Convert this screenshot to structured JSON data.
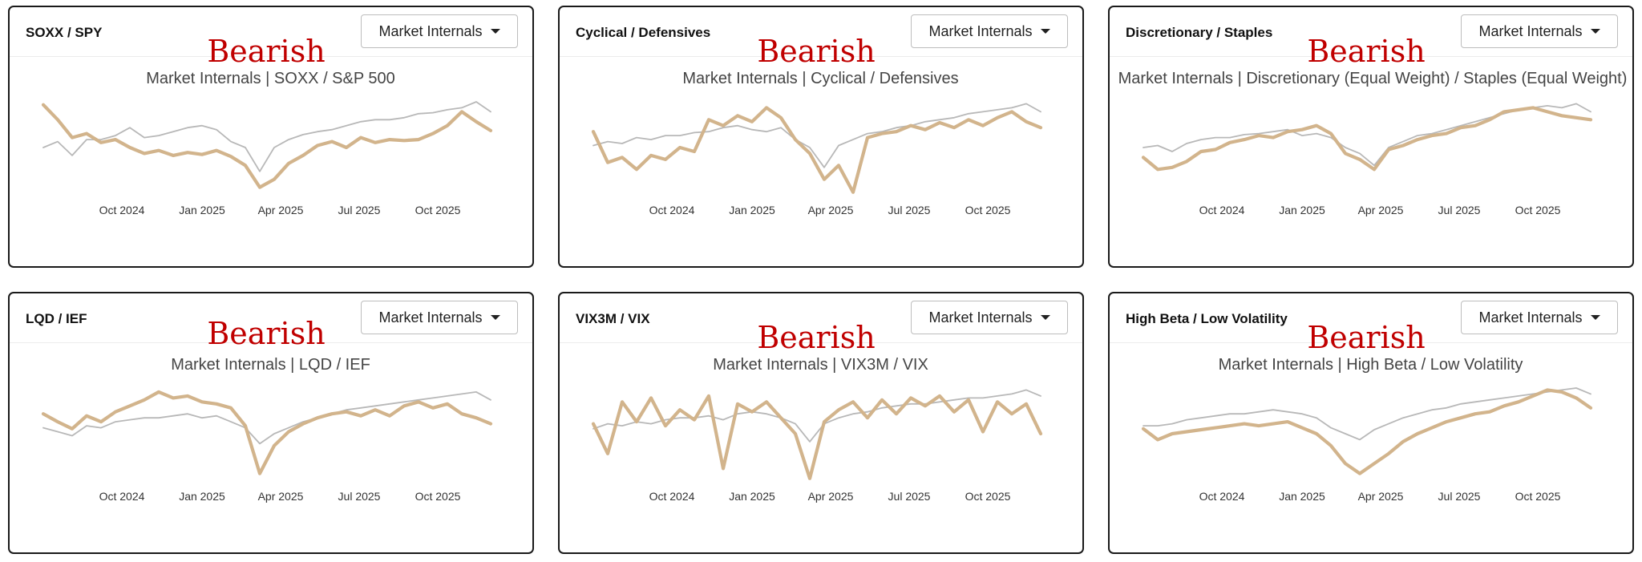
{
  "dropdown_label": "Market Internals",
  "colors": {
    "ratio": "#d2b48c",
    "benchmark": "#b8b8b8",
    "verdict": "#c00000"
  },
  "x_ticks": [
    "Oct 2024",
    "Jan 2025",
    "Apr 2025",
    "Jul 2025",
    "Oct 2025"
  ],
  "cards": [
    {
      "title": "SOXX / SPY",
      "verdict": "Bearish",
      "subtitle": "Market Internals | SOXX / S&P 500",
      "dropdown": "Market Internals",
      "chart_data": {
        "type": "line",
        "x_ticks": [
          "Oct 2024",
          "Jan 2025",
          "Apr 2025",
          "Jul 2025",
          "Oct 2025"
        ],
        "series": [
          {
            "values": [
              0.93,
              0.78,
              0.6,
              0.64,
              0.55,
              0.58,
              0.5,
              0.44,
              0.47,
              0.42,
              0.45,
              0.43,
              0.47,
              0.41,
              0.32,
              0.1,
              0.18,
              0.34,
              0.42,
              0.52,
              0.56,
              0.5,
              0.6,
              0.55,
              0.58,
              0.57,
              0.58,
              0.64,
              0.72,
              0.86,
              0.76,
              0.67
            ]
          },
          {
            "values": [
              0.5,
              0.56,
              0.42,
              0.58,
              0.58,
              0.62,
              0.7,
              0.6,
              0.62,
              0.66,
              0.7,
              0.72,
              0.68,
              0.56,
              0.5,
              0.26,
              0.5,
              0.58,
              0.63,
              0.66,
              0.68,
              0.72,
              0.76,
              0.78,
              0.78,
              0.8,
              0.84,
              0.85,
              0.88,
              0.9,
              0.96,
              0.86
            ]
          }
        ]
      }
    },
    {
      "title": "Cyclical / Defensives",
      "verdict": "Bearish",
      "subtitle": "Market Internals | Cyclical / Defensives",
      "dropdown": "Market Internals",
      "chart_data": {
        "type": "line",
        "x_ticks": [
          "Oct 2024",
          "Jan 2025",
          "Apr 2025",
          "Jul 2025",
          "Oct 2025"
        ],
        "series": [
          {
            "values": [
              0.66,
              0.35,
              0.4,
              0.28,
              0.42,
              0.38,
              0.5,
              0.46,
              0.78,
              0.72,
              0.82,
              0.76,
              0.9,
              0.8,
              0.58,
              0.44,
              0.18,
              0.32,
              0.05,
              0.6,
              0.64,
              0.66,
              0.72,
              0.68,
              0.75,
              0.7,
              0.78,
              0.72,
              0.8,
              0.86,
              0.76,
              0.7
            ]
          },
          {
            "values": [
              0.52,
              0.56,
              0.54,
              0.6,
              0.58,
              0.62,
              0.62,
              0.65,
              0.66,
              0.7,
              0.72,
              0.68,
              0.66,
              0.7,
              0.58,
              0.5,
              0.3,
              0.52,
              0.58,
              0.64,
              0.66,
              0.7,
              0.72,
              0.76,
              0.78,
              0.8,
              0.84,
              0.86,
              0.88,
              0.9,
              0.94,
              0.86
            ]
          }
        ]
      }
    },
    {
      "title": "Discretionary / Staples",
      "verdict": "Bearish",
      "subtitle": "Market Internals | Discretionary (Equal Weight) / Staples (Equal Weight)",
      "dropdown": "Market Internals",
      "chart_data": {
        "type": "line",
        "x_ticks": [
          "Oct 2024",
          "Jan 2025",
          "Apr 2025",
          "Jul 2025",
          "Oct 2025"
        ],
        "series": [
          {
            "values": [
              0.4,
              0.28,
              0.3,
              0.36,
              0.46,
              0.48,
              0.55,
              0.58,
              0.62,
              0.6,
              0.66,
              0.68,
              0.72,
              0.64,
              0.44,
              0.38,
              0.28,
              0.48,
              0.52,
              0.58,
              0.62,
              0.64,
              0.7,
              0.72,
              0.78,
              0.86,
              0.88,
              0.9,
              0.86,
              0.82,
              0.8,
              0.78
            ]
          },
          {
            "values": [
              0.5,
              0.52,
              0.46,
              0.54,
              0.58,
              0.6,
              0.6,
              0.63,
              0.64,
              0.66,
              0.68,
              0.62,
              0.64,
              0.6,
              0.5,
              0.44,
              0.32,
              0.5,
              0.56,
              0.62,
              0.64,
              0.68,
              0.72,
              0.76,
              0.8,
              0.84,
              0.88,
              0.9,
              0.92,
              0.9,
              0.94,
              0.86
            ]
          }
        ]
      }
    },
    {
      "title": "LQD / IEF",
      "verdict": "Bearish",
      "subtitle": "Market Internals | LQD / IEF",
      "dropdown": "Market Internals",
      "chart_data": {
        "type": "line",
        "x_ticks": [
          "Oct 2024",
          "Jan 2025",
          "Apr 2025",
          "Jul 2025",
          "Oct 2025"
        ],
        "series": [
          {
            "values": [
              0.7,
              0.62,
              0.55,
              0.68,
              0.62,
              0.72,
              0.78,
              0.84,
              0.92,
              0.86,
              0.88,
              0.82,
              0.8,
              0.76,
              0.58,
              0.1,
              0.38,
              0.52,
              0.6,
              0.66,
              0.7,
              0.72,
              0.68,
              0.74,
              0.68,
              0.78,
              0.82,
              0.76,
              0.8,
              0.7,
              0.66,
              0.6
            ]
          },
          {
            "values": [
              0.56,
              0.52,
              0.48,
              0.58,
              0.56,
              0.62,
              0.64,
              0.66,
              0.66,
              0.68,
              0.7,
              0.66,
              0.68,
              0.62,
              0.56,
              0.4,
              0.5,
              0.56,
              0.62,
              0.66,
              0.7,
              0.74,
              0.76,
              0.78,
              0.8,
              0.82,
              0.84,
              0.86,
              0.88,
              0.9,
              0.92,
              0.84
            ]
          }
        ]
      }
    },
    {
      "title": "VIX3M / VIX",
      "verdict": "Bearish",
      "subtitle": "Market Internals | VIX3M / VIX",
      "dropdown": "Market Internals",
      "chart_data": {
        "type": "line",
        "x_ticks": [
          "Oct 2024",
          "Jan 2025",
          "Apr 2025",
          "Jul 2025",
          "Oct 2025"
        ],
        "series": [
          {
            "values": [
              0.6,
              0.3,
              0.82,
              0.62,
              0.86,
              0.58,
              0.74,
              0.64,
              0.88,
              0.15,
              0.8,
              0.72,
              0.82,
              0.66,
              0.5,
              0.05,
              0.62,
              0.74,
              0.82,
              0.66,
              0.84,
              0.7,
              0.86,
              0.78,
              0.88,
              0.72,
              0.84,
              0.52,
              0.82,
              0.7,
              0.8,
              0.5
            ]
          },
          {
            "values": [
              0.55,
              0.6,
              0.58,
              0.62,
              0.6,
              0.64,
              0.66,
              0.66,
              0.68,
              0.64,
              0.7,
              0.72,
              0.7,
              0.66,
              0.6,
              0.42,
              0.6,
              0.66,
              0.7,
              0.72,
              0.76,
              0.78,
              0.8,
              0.8,
              0.82,
              0.84,
              0.86,
              0.86,
              0.88,
              0.9,
              0.94,
              0.88
            ]
          }
        ]
      }
    },
    {
      "title": "High Beta / Low Volatility",
      "verdict": "Bearish",
      "subtitle": "Market Internals | High Beta / Low Volatility",
      "dropdown": "Market Internals",
      "chart_data": {
        "type": "line",
        "x_ticks": [
          "Oct 2024",
          "Jan 2025",
          "Apr 2025",
          "Jul 2025",
          "Oct 2025"
        ],
        "series": [
          {
            "values": [
              0.55,
              0.44,
              0.5,
              0.52,
              0.54,
              0.56,
              0.58,
              0.6,
              0.58,
              0.6,
              0.62,
              0.56,
              0.5,
              0.38,
              0.2,
              0.1,
              0.2,
              0.3,
              0.42,
              0.5,
              0.56,
              0.62,
              0.66,
              0.7,
              0.72,
              0.78,
              0.82,
              0.88,
              0.94,
              0.92,
              0.86,
              0.76
            ]
          },
          {
            "values": [
              0.58,
              0.58,
              0.6,
              0.64,
              0.66,
              0.68,
              0.7,
              0.7,
              0.72,
              0.74,
              0.72,
              0.7,
              0.66,
              0.56,
              0.5,
              0.44,
              0.54,
              0.6,
              0.66,
              0.7,
              0.74,
              0.76,
              0.8,
              0.82,
              0.84,
              0.86,
              0.88,
              0.9,
              0.92,
              0.94,
              0.96,
              0.9
            ]
          }
        ]
      }
    }
  ]
}
